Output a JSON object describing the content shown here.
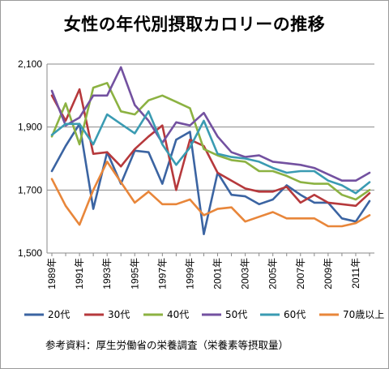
{
  "chart_data": {
    "type": "line",
    "title": "女性の年代別摂取カロリーの推移",
    "ylim": [
      1500,
      2100
    ],
    "yticks": [
      1500,
      1700,
      1900,
      2100
    ],
    "ytick_labels": [
      "1,500",
      "1,700",
      "1,900",
      "2,100"
    ],
    "x": [
      1989,
      1990,
      1991,
      1992,
      1993,
      1994,
      1995,
      1996,
      1997,
      1998,
      1999,
      2000,
      2001,
      2002,
      2003,
      2004,
      2005,
      2006,
      2007,
      2008,
      2009,
      2010,
      2011,
      2012
    ],
    "xtick_labels": [
      "1989年",
      "1991年",
      "1993年",
      "1995年",
      "1997年",
      "1999年",
      "2001年",
      "2003年",
      "2005年",
      "2007年",
      "2009年",
      "2011年"
    ],
    "grid": "horizontal",
    "legend_position": "bottom",
    "series": [
      {
        "name": "20代",
        "color": "#3b64a2",
        "values": [
          1760,
          1840,
          1910,
          1640,
          1820,
          1720,
          1825,
          1820,
          1720,
          1860,
          1885,
          1560,
          1755,
          1685,
          1680,
          1655,
          1670,
          1715,
          1685,
          1660,
          1660,
          1610,
          1600,
          1665
        ]
      },
      {
        "name": "30代",
        "color": "#b6393c",
        "values": [
          2000,
          1920,
          2020,
          1815,
          1820,
          1775,
          1830,
          1870,
          1905,
          1700,
          1860,
          1840,
          1755,
          1730,
          1705,
          1695,
          1695,
          1710,
          1660,
          1685,
          1660,
          1655,
          1650,
          1690
        ]
      },
      {
        "name": "40代",
        "color": "#8cb242",
        "values": [
          1870,
          1975,
          1845,
          2025,
          2040,
          1950,
          1940,
          1985,
          2000,
          1980,
          1960,
          1830,
          1810,
          1795,
          1790,
          1760,
          1760,
          1745,
          1725,
          1720,
          1720,
          1685,
          1670,
          1700
        ]
      },
      {
        "name": "50代",
        "color": "#7351a0",
        "values": [
          2015,
          1905,
          1930,
          2000,
          2000,
          2090,
          1970,
          1920,
          1850,
          1915,
          1905,
          1945,
          1870,
          1820,
          1805,
          1810,
          1790,
          1785,
          1780,
          1770,
          1750,
          1730,
          1730,
          1755
        ]
      },
      {
        "name": "60代",
        "color": "#3a9bb2",
        "values": [
          1875,
          1910,
          1910,
          1845,
          1940,
          1910,
          1880,
          1950,
          1845,
          1780,
          1835,
          1920,
          1815,
          1805,
          1800,
          1790,
          1770,
          1755,
          1760,
          1760,
          1730,
          1715,
          1690,
          1725
        ]
      },
      {
        "name": "70歳以上",
        "color": "#e8863a",
        "values": [
          1735,
          1650,
          1590,
          1700,
          1790,
          1725,
          1660,
          1695,
          1655,
          1655,
          1670,
          1620,
          1640,
          1645,
          1600,
          1615,
          1630,
          1610,
          1610,
          1610,
          1585,
          1585,
          1595,
          1620
        ]
      }
    ]
  },
  "source_text": "参考資料：厚生労働省の栄養調査（栄養素等摂取量）"
}
